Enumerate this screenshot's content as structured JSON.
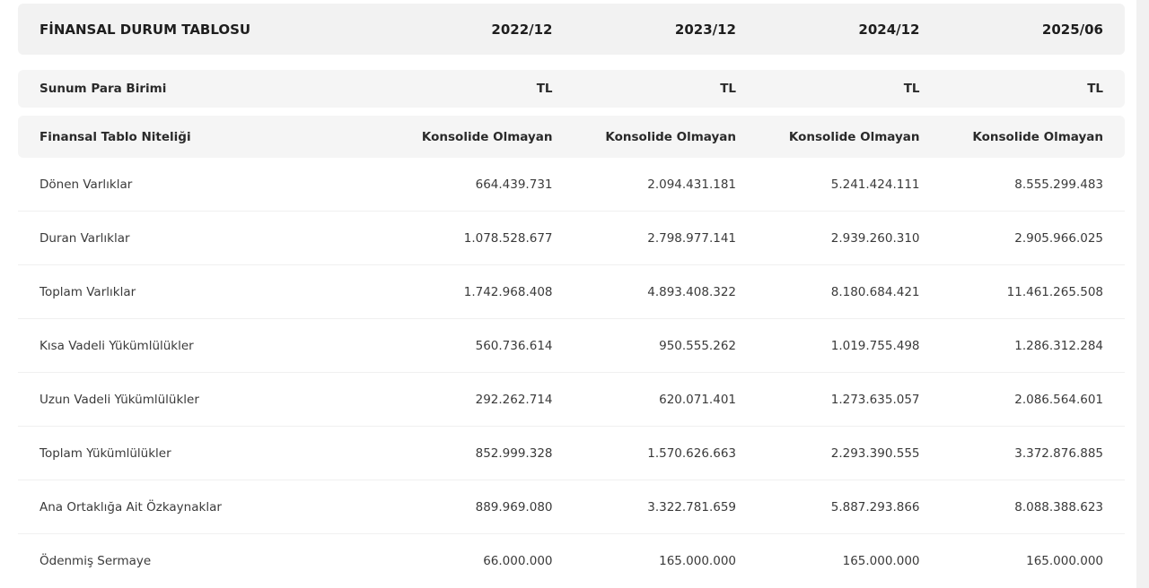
{
  "table": {
    "title": "FİNANSAL DURUM TABLOSU",
    "periods": [
      "2022/12",
      "2023/12",
      "2024/12",
      "2025/06"
    ],
    "meta_rows": [
      {
        "label": "Sunum Para Birimi",
        "values": [
          "TL",
          "TL",
          "TL",
          "TL"
        ]
      },
      {
        "label": "Finansal Tablo Niteliği",
        "values": [
          "Konsolide Olmayan",
          "Konsolide Olmayan",
          "Konsolide Olmayan",
          "Konsolide Olmayan"
        ]
      }
    ],
    "rows": [
      {
        "label": "Dönen Varlıklar",
        "values": [
          "664.439.731",
          "2.094.431.181",
          "5.241.424.111",
          "8.555.299.483"
        ]
      },
      {
        "label": "Duran Varlıklar",
        "values": [
          "1.078.528.677",
          "2.798.977.141",
          "2.939.260.310",
          "2.905.966.025"
        ]
      },
      {
        "label": "Toplam Varlıklar",
        "values": [
          "1.742.968.408",
          "4.893.408.322",
          "8.180.684.421",
          "11.461.265.508"
        ]
      },
      {
        "label": "Kısa Vadeli Yükümlülükler",
        "values": [
          "560.736.614",
          "950.555.262",
          "1.019.755.498",
          "1.286.312.284"
        ]
      },
      {
        "label": "Uzun Vadeli Yükümlülükler",
        "values": [
          "292.262.714",
          "620.071.401",
          "1.273.635.057",
          "2.086.564.601"
        ]
      },
      {
        "label": "Toplam Yükümlülükler",
        "values": [
          "852.999.328",
          "1.570.626.663",
          "2.293.390.555",
          "3.372.876.885"
        ]
      },
      {
        "label": "Ana Ortaklığa Ait Özkaynaklar",
        "values": [
          "889.969.080",
          "3.322.781.659",
          "5.887.293.866",
          "8.088.388.623"
        ]
      },
      {
        "label": "Ödenmiş Sermaye",
        "values": [
          "66.000.000",
          "165.000.000",
          "165.000.000",
          "165.000.000"
        ]
      }
    ]
  }
}
